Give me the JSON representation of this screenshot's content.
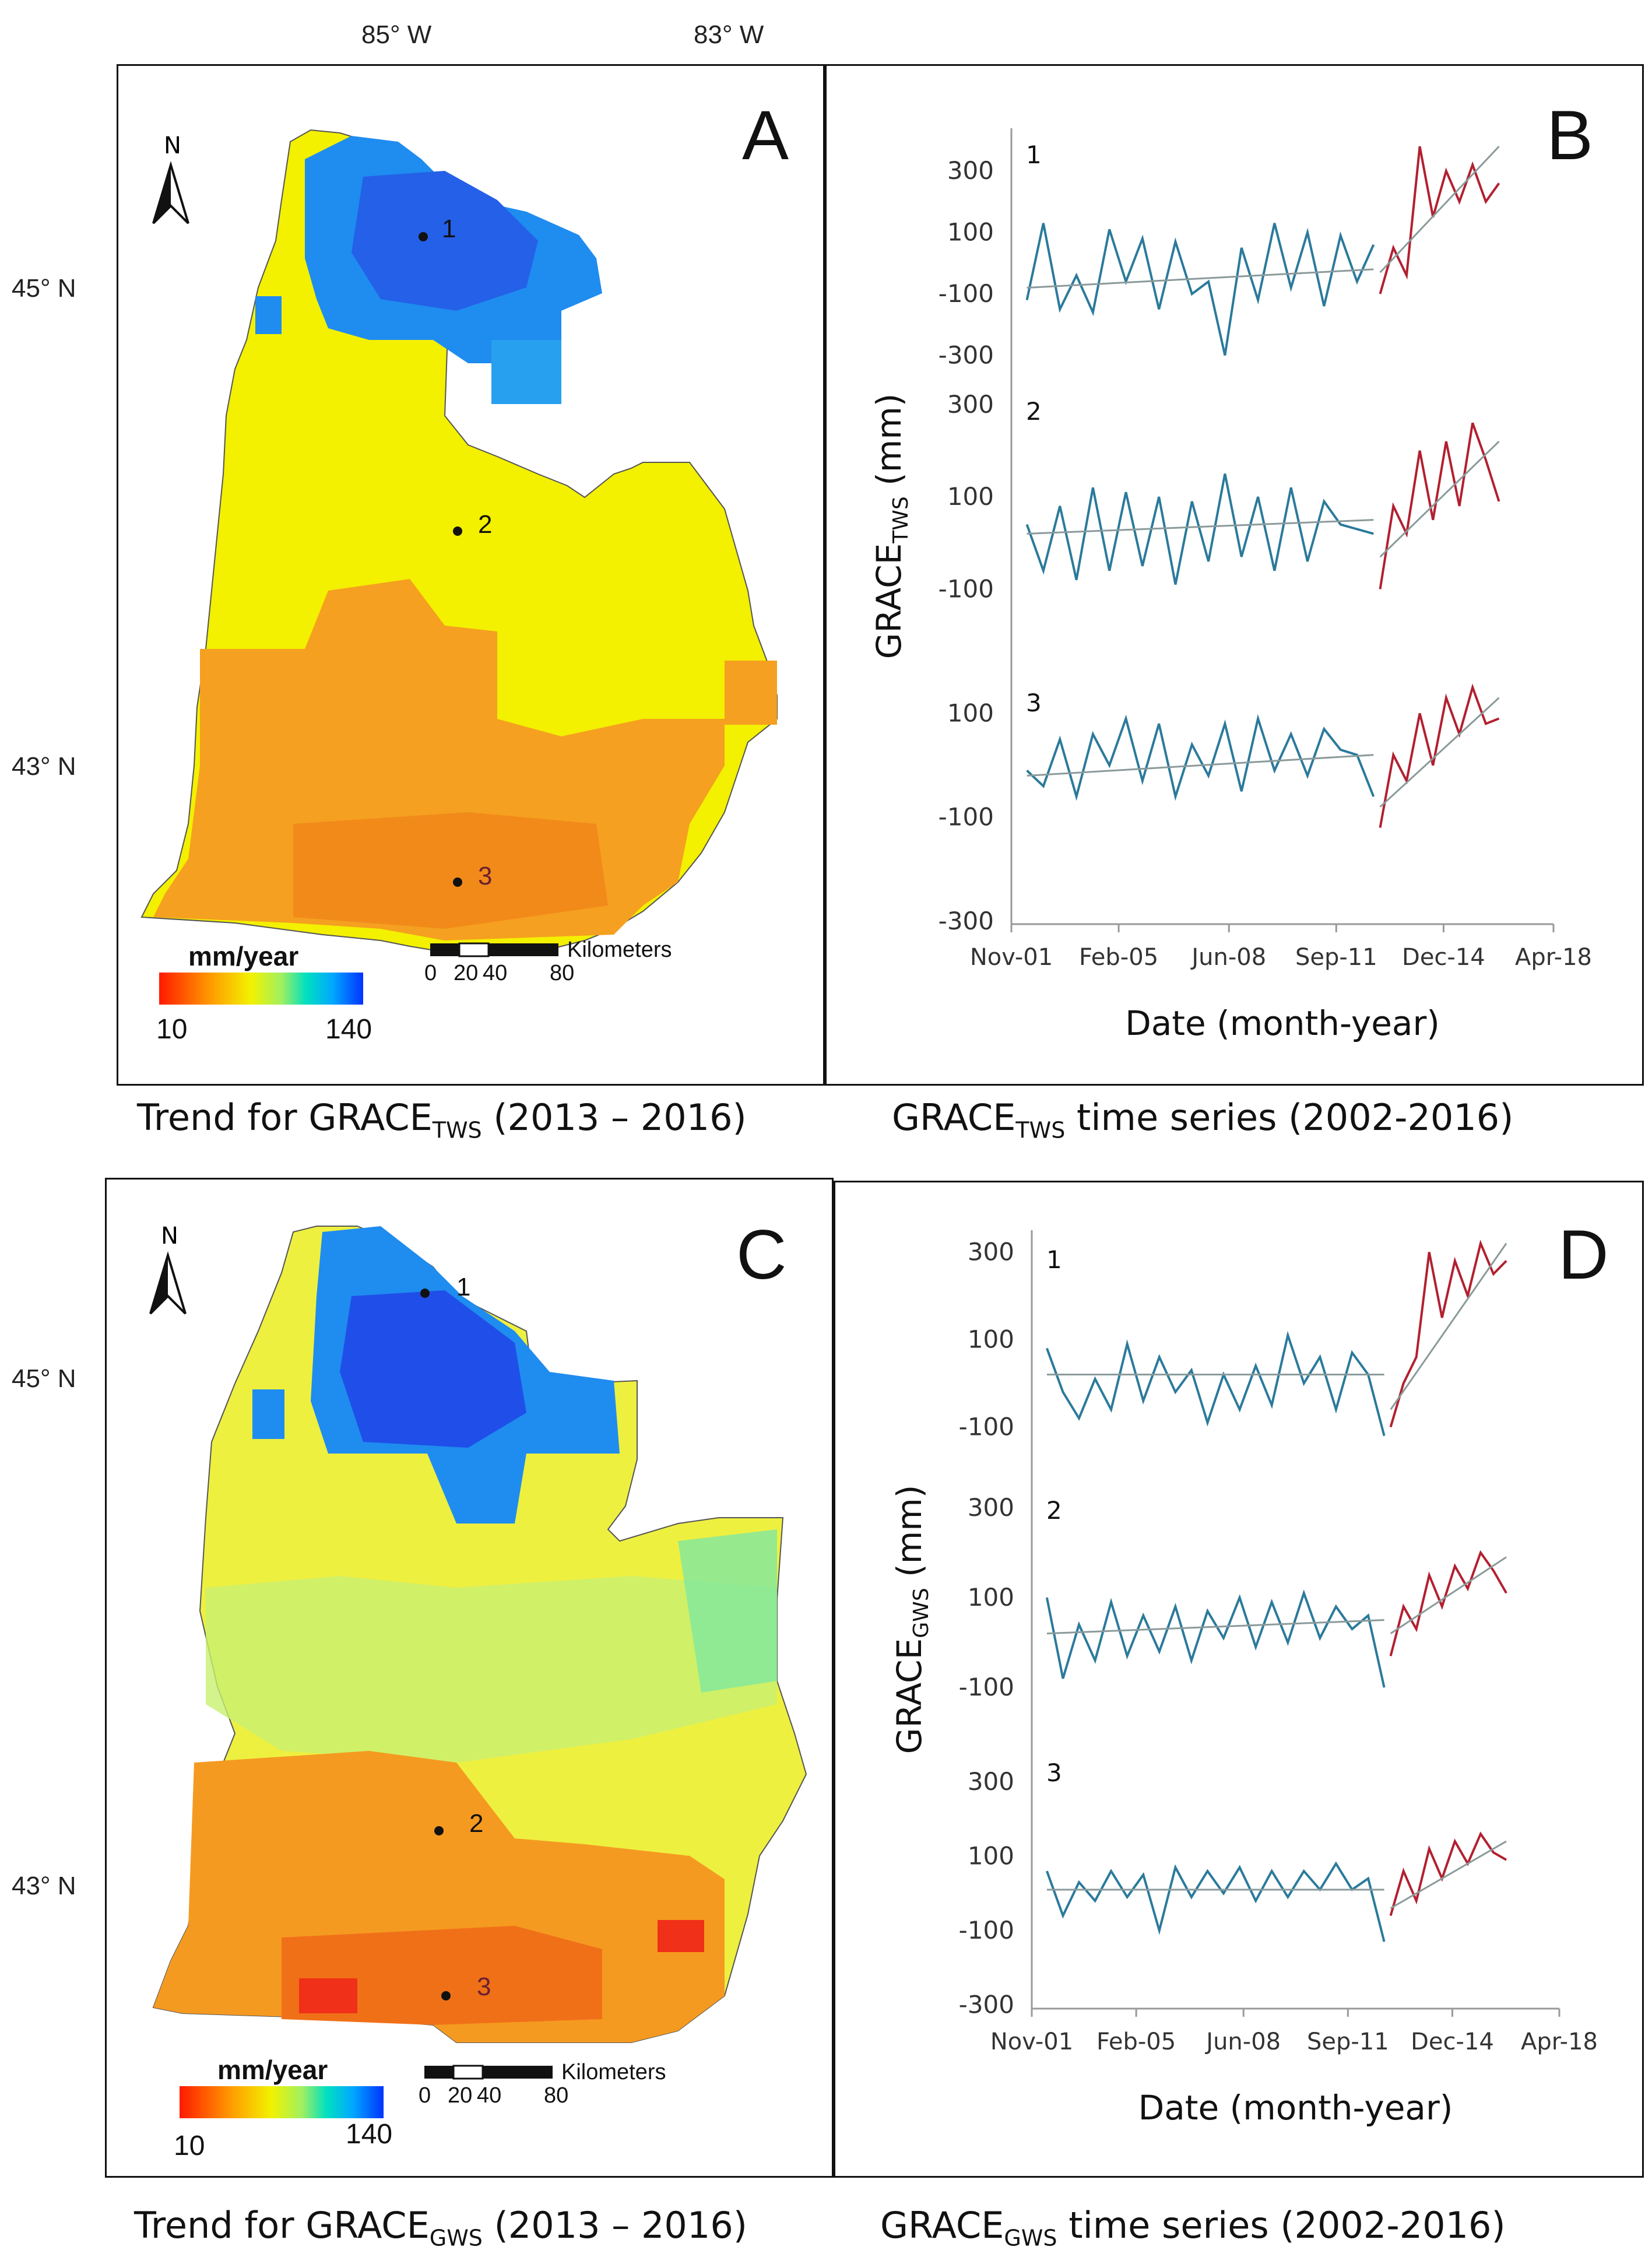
{
  "top_axis": {
    "lon_left": "85° W",
    "lon_right": "83° W"
  },
  "panels": {
    "A": {
      "letter": "A",
      "lat_top": "45° N",
      "lat_bottom": "43° N",
      "caption_pre": "Trend for GRACE",
      "caption_sub": "TWS",
      "caption_post": " (2013 – 2016)",
      "legend": {
        "title": "mm/year",
        "min": "10",
        "max": "140"
      },
      "scale": {
        "unit": "Kilometers",
        "ticks": [
          "0",
          "20",
          "40",
          "80"
        ]
      },
      "sites": [
        "1",
        "2",
        "3"
      ]
    },
    "C": {
      "letter": "C",
      "lat_top": "45° N",
      "lat_bottom": "43° N",
      "caption_pre": "Trend for GRACE",
      "caption_sub": "GWS",
      "caption_post": " (2013 – 2016)",
      "legend": {
        "title": "mm/year",
        "min": "10",
        "max": "140"
      },
      "scale": {
        "unit": "Kilometers",
        "ticks": [
          "0",
          "20",
          "40",
          "80"
        ]
      },
      "sites": [
        "1",
        "2",
        "3"
      ]
    },
    "B": {
      "letter": "B",
      "caption_pre": "GRACE",
      "caption_sub": "TWS",
      "caption_post": " time series (2002-2016)"
    },
    "D": {
      "letter": "D",
      "caption_pre": "GRACE",
      "caption_sub": "GWS",
      "caption_post": " time series (2002-2016)"
    }
  },
  "colors": {
    "pre_series": "#2b7a9b",
    "post_series": "#b22030",
    "trend": "#8a9a9a",
    "axis": "#999999"
  },
  "chart_data": [
    {
      "type": "line",
      "panel": "B",
      "title": "GRACE TWS time series (2002-2016)",
      "xlabel": "Date (month-year)",
      "ylabel": "GRACE TWS (mm)",
      "ylabel_main": "GRACE",
      "ylabel_sub": "TWS",
      "ylabel_unit": "(mm)",
      "x_ticks": [
        "Nov-01",
        "Feb-05",
        "Jun-08",
        "Sep-11",
        "Dec-14",
        "Apr-18"
      ],
      "xlim": [
        2001.83,
        2018.25
      ],
      "subplots": [
        {
          "label": "1",
          "y_ticks": [
            "300",
            "100",
            "-100",
            "-300"
          ],
          "ylim": [
            -320,
            420
          ],
          "pre": {
            "x": [
              2002.3,
              2002.8,
              2003.3,
              2003.8,
              2004.3,
              2004.8,
              2005.3,
              2005.8,
              2006.3,
              2006.8,
              2007.3,
              2007.8,
              2008.3,
              2008.8,
              2009.3,
              2009.8,
              2010.3,
              2010.8,
              2011.3,
              2011.8,
              2012.3,
              2012.8
            ],
            "y": [
              -120,
              130,
              -150,
              -40,
              -160,
              110,
              -60,
              80,
              -150,
              70,
              -100,
              -60,
              -300,
              50,
              -120,
              130,
              -80,
              100,
              -140,
              90,
              -60,
              60
            ]
          },
          "post": {
            "x": [
              2013.0,
              2013.4,
              2013.8,
              2014.2,
              2014.6,
              2015.0,
              2015.4,
              2015.8,
              2016.2,
              2016.6
            ],
            "y": [
              -100,
              50,
              -40,
              380,
              150,
              300,
              200,
              320,
              200,
              260
            ]
          },
          "trend_pre": [
            [
              2002.3,
              -80
            ],
            [
              2012.8,
              -20
            ]
          ],
          "trend_post": [
            [
              2013.0,
              -30
            ],
            [
              2016.6,
              380
            ]
          ]
        },
        {
          "label": "2",
          "y_ticks": [
            "300",
            "100",
            "-100"
          ],
          "ylim": [
            -150,
            330
          ],
          "pre": {
            "x": [
              2002.3,
              2002.8,
              2003.3,
              2003.8,
              2004.3,
              2004.8,
              2005.3,
              2005.8,
              2006.3,
              2006.8,
              2007.3,
              2007.8,
              2008.3,
              2008.8,
              2009.3,
              2009.8,
              2010.3,
              2010.8,
              2011.3,
              2011.8,
              2012.3,
              2012.8
            ],
            "y": [
              40,
              -60,
              80,
              -80,
              120,
              -60,
              110,
              -50,
              100,
              -90,
              90,
              -40,
              150,
              -30,
              100,
              -60,
              120,
              -40,
              90,
              40,
              30,
              20
            ]
          },
          "post": {
            "x": [
              2013.0,
              2013.4,
              2013.8,
              2014.2,
              2014.6,
              2015.0,
              2015.4,
              2015.8,
              2016.2,
              2016.6
            ],
            "y": [
              -100,
              80,
              20,
              200,
              50,
              220,
              80,
              260,
              180,
              90
            ]
          },
          "trend_pre": [
            [
              2002.3,
              20
            ],
            [
              2012.8,
              50
            ]
          ],
          "trend_post": [
            [
              2013.0,
              -30
            ],
            [
              2016.6,
              220
            ]
          ]
        },
        {
          "label": "3",
          "y_ticks": [
            "100",
            "-100",
            "-300"
          ],
          "ylim": [
            -300,
            160
          ],
          "pre": {
            "x": [
              2002.3,
              2002.8,
              2003.3,
              2003.8,
              2004.3,
              2004.8,
              2005.3,
              2005.8,
              2006.3,
              2006.8,
              2007.3,
              2007.8,
              2008.3,
              2008.8,
              2009.3,
              2009.8,
              2010.3,
              2010.8,
              2011.3,
              2011.8,
              2012.3,
              2012.8
            ],
            "y": [
              -10,
              -40,
              50,
              -60,
              60,
              0,
              90,
              -30,
              80,
              -60,
              40,
              -20,
              80,
              -50,
              90,
              -10,
              60,
              -20,
              70,
              30,
              20,
              -60
            ]
          },
          "post": {
            "x": [
              2013.0,
              2013.4,
              2013.8,
              2014.2,
              2014.6,
              2015.0,
              2015.4,
              2015.8,
              2016.2,
              2016.6
            ],
            "y": [
              -120,
              20,
              -30,
              100,
              0,
              130,
              60,
              150,
              80,
              90
            ]
          },
          "trend_pre": [
            [
              2002.3,
              -20
            ],
            [
              2012.8,
              20
            ]
          ],
          "trend_post": [
            [
              2013.0,
              -80
            ],
            [
              2016.6,
              130
            ]
          ]
        }
      ]
    },
    {
      "type": "line",
      "panel": "D",
      "title": "GRACE GWS time series (2002-2016)",
      "xlabel": "Date (month-year)",
      "ylabel": "GRACE GWS (mm)",
      "ylabel_main": "GRACE",
      "ylabel_sub": "GWS",
      "ylabel_unit": "(mm)",
      "x_ticks": [
        "Nov-01",
        "Feb-05",
        "Jun-08",
        "Sep-11",
        "Dec-14",
        "Apr-18"
      ],
      "xlim": [
        2001.83,
        2018.25
      ],
      "subplots": [
        {
          "label": "1",
          "y_ticks": [
            "300",
            "100",
            "-100"
          ],
          "ylim": [
            -150,
            330
          ],
          "pre": {
            "x": [
              2002.3,
              2002.8,
              2003.3,
              2003.8,
              2004.3,
              2004.8,
              2005.3,
              2005.8,
              2006.3,
              2006.8,
              2007.3,
              2007.8,
              2008.3,
              2008.8,
              2009.3,
              2009.8,
              2010.3,
              2010.8,
              2011.3,
              2011.8,
              2012.3,
              2012.8
            ],
            "y": [
              80,
              -20,
              -80,
              10,
              -60,
              90,
              -40,
              60,
              -20,
              30,
              -90,
              20,
              -60,
              40,
              -50,
              110,
              0,
              60,
              -60,
              70,
              20,
              -120
            ]
          },
          "post": {
            "x": [
              2013.0,
              2013.4,
              2013.8,
              2014.2,
              2014.6,
              2015.0,
              2015.4,
              2015.8,
              2016.2,
              2016.6
            ],
            "y": [
              -100,
              0,
              60,
              300,
              150,
              280,
              200,
              320,
              250,
              280
            ]
          },
          "trend_pre": [
            [
              2002.3,
              20
            ],
            [
              2012.8,
              20
            ]
          ],
          "trend_post": [
            [
              2013.0,
              -60
            ],
            [
              2016.6,
              320
            ]
          ]
        },
        {
          "label": "2",
          "y_ticks": [
            "300",
            "100",
            "-100"
          ],
          "ylim": [
            -140,
            340
          ],
          "pre": {
            "x": [
              2002.3,
              2002.8,
              2003.3,
              2003.8,
              2004.3,
              2004.8,
              2005.3,
              2005.8,
              2006.3,
              2006.8,
              2007.3,
              2007.8,
              2008.3,
              2008.8,
              2009.3,
              2009.8,
              2010.3,
              2010.8,
              2011.3,
              2011.8,
              2012.3,
              2012.8
            ],
            "y": [
              100,
              -80,
              40,
              -40,
              90,
              -30,
              60,
              -20,
              80,
              -40,
              70,
              10,
              100,
              -10,
              90,
              0,
              110,
              10,
              80,
              30,
              60,
              -100
            ]
          },
          "post": {
            "x": [
              2013.0,
              2013.4,
              2013.8,
              2014.2,
              2014.6,
              2015.0,
              2015.4,
              2015.8,
              2016.2,
              2016.6
            ],
            "y": [
              -30,
              80,
              30,
              150,
              80,
              170,
              120,
              200,
              160,
              110
            ]
          },
          "trend_pre": [
            [
              2002.3,
              20
            ],
            [
              2012.8,
              50
            ]
          ],
          "trend_post": [
            [
              2013.0,
              20
            ],
            [
              2016.6,
              190
            ]
          ]
        },
        {
          "label": "3",
          "y_ticks": [
            "300",
            "100",
            "-100",
            "-300"
          ],
          "ylim": [
            -310,
            380
          ],
          "pre": {
            "x": [
              2002.3,
              2002.8,
              2003.3,
              2003.8,
              2004.3,
              2004.8,
              2005.3,
              2005.8,
              2006.3,
              2006.8,
              2007.3,
              2007.8,
              2008.3,
              2008.8,
              2009.3,
              2009.8,
              2010.3,
              2010.8,
              2011.3,
              2011.8,
              2012.3,
              2012.8
            ],
            "y": [
              60,
              -60,
              30,
              -20,
              60,
              -10,
              50,
              -100,
              70,
              -10,
              60,
              0,
              70,
              -20,
              60,
              -10,
              60,
              10,
              80,
              10,
              40,
              -130
            ]
          },
          "post": {
            "x": [
              2013.0,
              2013.4,
              2013.8,
              2014.2,
              2014.6,
              2015.0,
              2015.4,
              2015.8,
              2016.2,
              2016.6
            ],
            "y": [
              -60,
              60,
              -20,
              120,
              40,
              140,
              80,
              160,
              110,
              90
            ]
          },
          "trend_pre": [
            [
              2002.3,
              10
            ],
            [
              2012.8,
              10
            ]
          ],
          "trend_post": [
            [
              2013.0,
              -40
            ],
            [
              2016.6,
              140
            ]
          ]
        }
      ]
    }
  ]
}
